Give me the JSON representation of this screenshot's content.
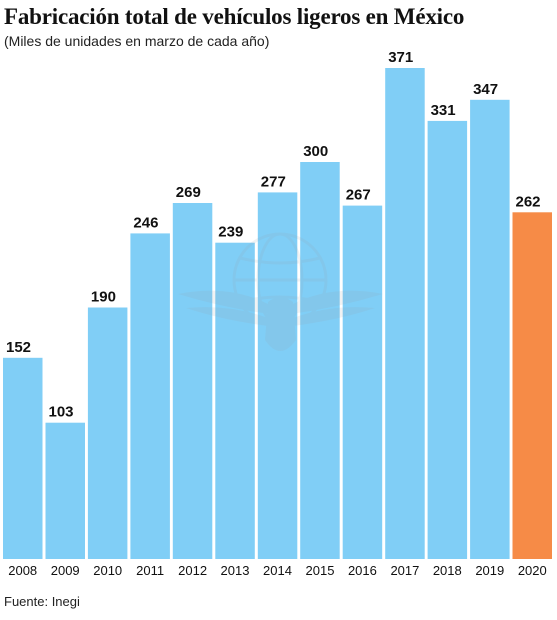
{
  "header": {
    "title": "Fabricación total de vehículos ligeros en México",
    "subtitle": "(Miles de unidades en marzo de cada año)"
  },
  "footer": {
    "source": "Fuente: Inegi"
  },
  "watermark": {
    "icon": "eagle-globe-emblem-icon"
  },
  "colors": {
    "default_bar": "#80CEF6",
    "highlight_bar": "#F68B47"
  },
  "chart_data": {
    "type": "bar",
    "categories": [
      "2008",
      "2009",
      "2010",
      "2011",
      "2012",
      "2013",
      "2014",
      "2015",
      "2016",
      "2017",
      "2018",
      "2019",
      "2020"
    ],
    "values": [
      152,
      103,
      190,
      246,
      269,
      239,
      277,
      300,
      267,
      371,
      331,
      347,
      262
    ],
    "highlight": [
      "2020"
    ],
    "title": "Fabricación total de vehículos ligeros en México",
    "subtitle": "(Miles de unidades en marzo de cada año)",
    "xlabel": "",
    "ylabel": "",
    "ylim": [
      0,
      371
    ],
    "grid": false,
    "legend": "none"
  }
}
